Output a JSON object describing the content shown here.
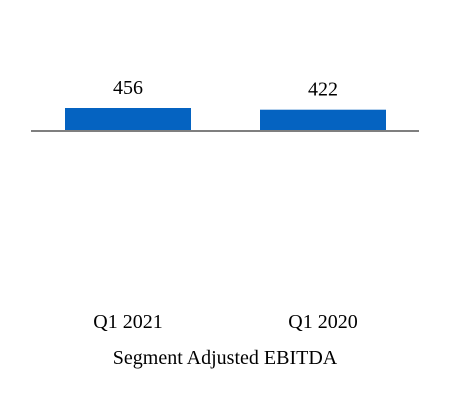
{
  "chart_data": {
    "type": "bar",
    "categories": [
      "Q1 2021",
      "Q1 2020"
    ],
    "values": [
      456,
      422
    ],
    "data_labels": [
      "456",
      "422"
    ],
    "title": "",
    "xlabel": "Segment Adjusted EBITDA",
    "ylabel": "",
    "bar_color": "#0563c1",
    "axis_color": "#7f7f7f",
    "grid": false,
    "legend": "none"
  }
}
